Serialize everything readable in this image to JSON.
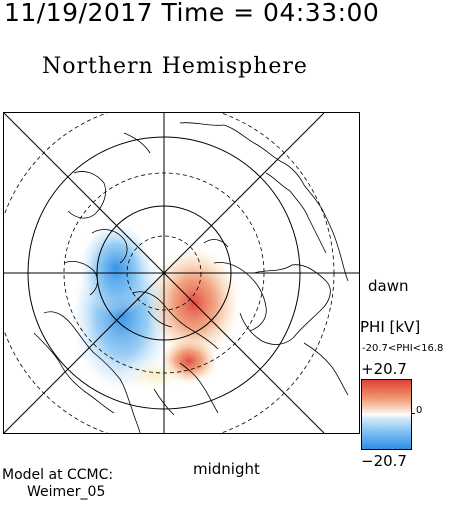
{
  "header": {
    "datetime": "11/19/2017 Time = 04:33:00",
    "title": "Northern Hemisphere"
  },
  "map": {
    "dawn_label": "dawn",
    "midnight_label": "midnight",
    "projection": "polar",
    "grid_circles": "dashed latitude rings",
    "meridians": "solid lines every 45 degrees"
  },
  "legend": {
    "title": "PHI [kV]",
    "range_text": "-20.7<PHI<16.8",
    "max_label": "+20.7",
    "min_label": "−20.7",
    "zero_label": "0",
    "colors": {
      "positive": "#e0413a",
      "mid": "#ffffff",
      "negative": "#2f8fe6"
    }
  },
  "model": {
    "label": "Model at CCMC:",
    "name": "Weimer_05"
  }
}
